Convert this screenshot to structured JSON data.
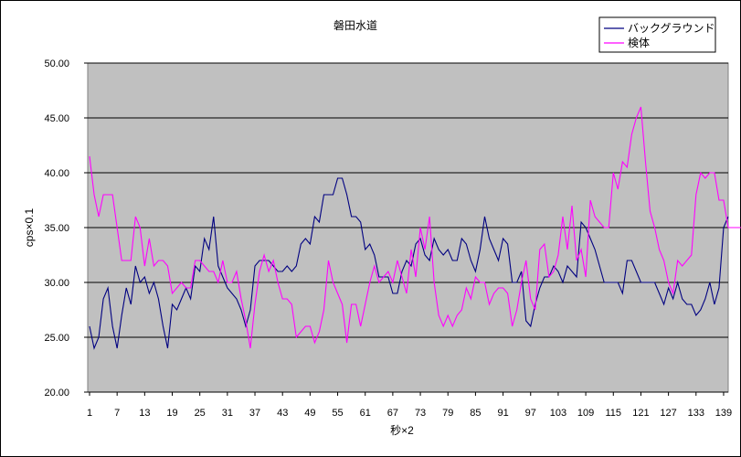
{
  "chart_data": {
    "type": "line",
    "title": "磐田水道",
    "xlabel": "秒×2",
    "ylabel": "cps×0.1",
    "ylim": [
      20,
      50
    ],
    "yticks": [
      "20.00",
      "25.00",
      "30.00",
      "35.00",
      "40.00",
      "45.00",
      "50.00"
    ],
    "xticks": [
      "1",
      "7",
      "13",
      "19",
      "25",
      "31",
      "37",
      "43",
      "49",
      "55",
      "61",
      "67",
      "73",
      "79",
      "85",
      "91",
      "97",
      "103",
      "109",
      "115",
      "121",
      "127",
      "133",
      "139"
    ],
    "x_start": 1,
    "grid": "horizontal",
    "legend_position": "top-right",
    "plot_background": "#c0c0c0",
    "series": [
      {
        "name": "バックグラウンド",
        "color": "#000080",
        "values": [
          26.0,
          24.0,
          25.0,
          28.5,
          29.5,
          26.0,
          24.0,
          27.0,
          29.5,
          28.0,
          31.5,
          30.0,
          30.5,
          29.0,
          30.0,
          28.5,
          26.0,
          24.0,
          28.0,
          27.5,
          28.5,
          29.5,
          28.5,
          31.5,
          31.0,
          34.0,
          33.0,
          36.0,
          31.5,
          30.5,
          29.5,
          29.0,
          28.5,
          27.5,
          26.0,
          27.5,
          31.5,
          32.0,
          32.0,
          32.0,
          31.5,
          31.0,
          31.0,
          31.5,
          31.0,
          31.5,
          33.5,
          34.0,
          33.5,
          36.0,
          35.5,
          38.0,
          38.0,
          38.0,
          39.5,
          39.5,
          38.0,
          36.0,
          36.0,
          35.5,
          33.0,
          33.5,
          32.5,
          30.5,
          30.5,
          30.5,
          29.0,
          29.0,
          31.0,
          32.0,
          31.5,
          33.5,
          34.0,
          32.5,
          32.0,
          34.0,
          33.0,
          32.5,
          33.0,
          32.0,
          32.0,
          34.0,
          33.5,
          32.0,
          31.0,
          33.0,
          36.0,
          34.0,
          33.0,
          32.0,
          34.0,
          33.5,
          30.0,
          30.0,
          31.0,
          26.5,
          26.0,
          28.0,
          29.5,
          30.5,
          30.5,
          31.5,
          31.0,
          30.0,
          31.5,
          31.0,
          30.5,
          35.5,
          35.0,
          34.0,
          33.0,
          31.5,
          30.0,
          30.0,
          30.0,
          30.0,
          29.0,
          32.0,
          32.0,
          31.0,
          30.0,
          30.0,
          30.0,
          30.0,
          29.0,
          28.0,
          29.5,
          28.5,
          30.0,
          28.5,
          28.0,
          28.0,
          27.0,
          27.5,
          28.5,
          30.0,
          28.0,
          29.5,
          35.0,
          36.0
        ]
      },
      {
        "name": "検体",
        "color": "#ff00ff",
        "values": [
          41.5,
          38.0,
          36.0,
          38.0,
          38.0,
          38.0,
          35.0,
          32.0,
          32.0,
          32.0,
          36.0,
          35.0,
          31.5,
          34.0,
          31.5,
          32.0,
          32.0,
          31.5,
          29.0,
          29.5,
          30.0,
          29.5,
          29.5,
          32.0,
          32.0,
          31.5,
          31.0,
          31.0,
          30.0,
          32.0,
          30.0,
          30.0,
          31.0,
          28.5,
          26.5,
          24.0,
          28.0,
          31.0,
          32.5,
          31.0,
          32.0,
          30.0,
          28.5,
          28.5,
          28.0,
          25.0,
          25.5,
          26.0,
          26.0,
          24.5,
          25.5,
          27.5,
          32.0,
          30.0,
          29.0,
          28.0,
          24.5,
          28.0,
          28.0,
          26.0,
          28.0,
          30.0,
          31.5,
          30.0,
          30.5,
          31.0,
          30.0,
          32.0,
          30.5,
          29.0,
          33.0,
          30.5,
          35.0,
          33.0,
          36.0,
          30.0,
          27.0,
          26.0,
          27.0,
          26.0,
          27.0,
          27.5,
          29.5,
          28.5,
          30.5,
          30.0,
          30.0,
          28.0,
          29.0,
          29.5,
          29.5,
          29.0,
          26.0,
          27.5,
          30.0,
          32.0,
          28.5,
          27.5,
          33.0,
          33.5,
          30.5,
          31.0,
          32.5,
          36.0,
          33.0,
          37.0,
          32.0,
          33.0,
          30.5,
          37.5,
          36.0,
          35.5,
          35.0,
          35.0,
          40.0,
          38.5,
          41.0,
          40.5,
          43.5,
          45.0,
          46.0,
          41.0,
          36.5,
          35.0,
          33.0,
          32.0,
          30.0,
          29.0,
          32.0,
          31.5,
          32.0,
          32.5,
          38.0,
          40.0,
          39.5,
          40.0,
          40.0,
          37.5,
          37.5,
          35.0,
          35.0,
          35.0,
          35.0
        ]
      }
    ]
  }
}
